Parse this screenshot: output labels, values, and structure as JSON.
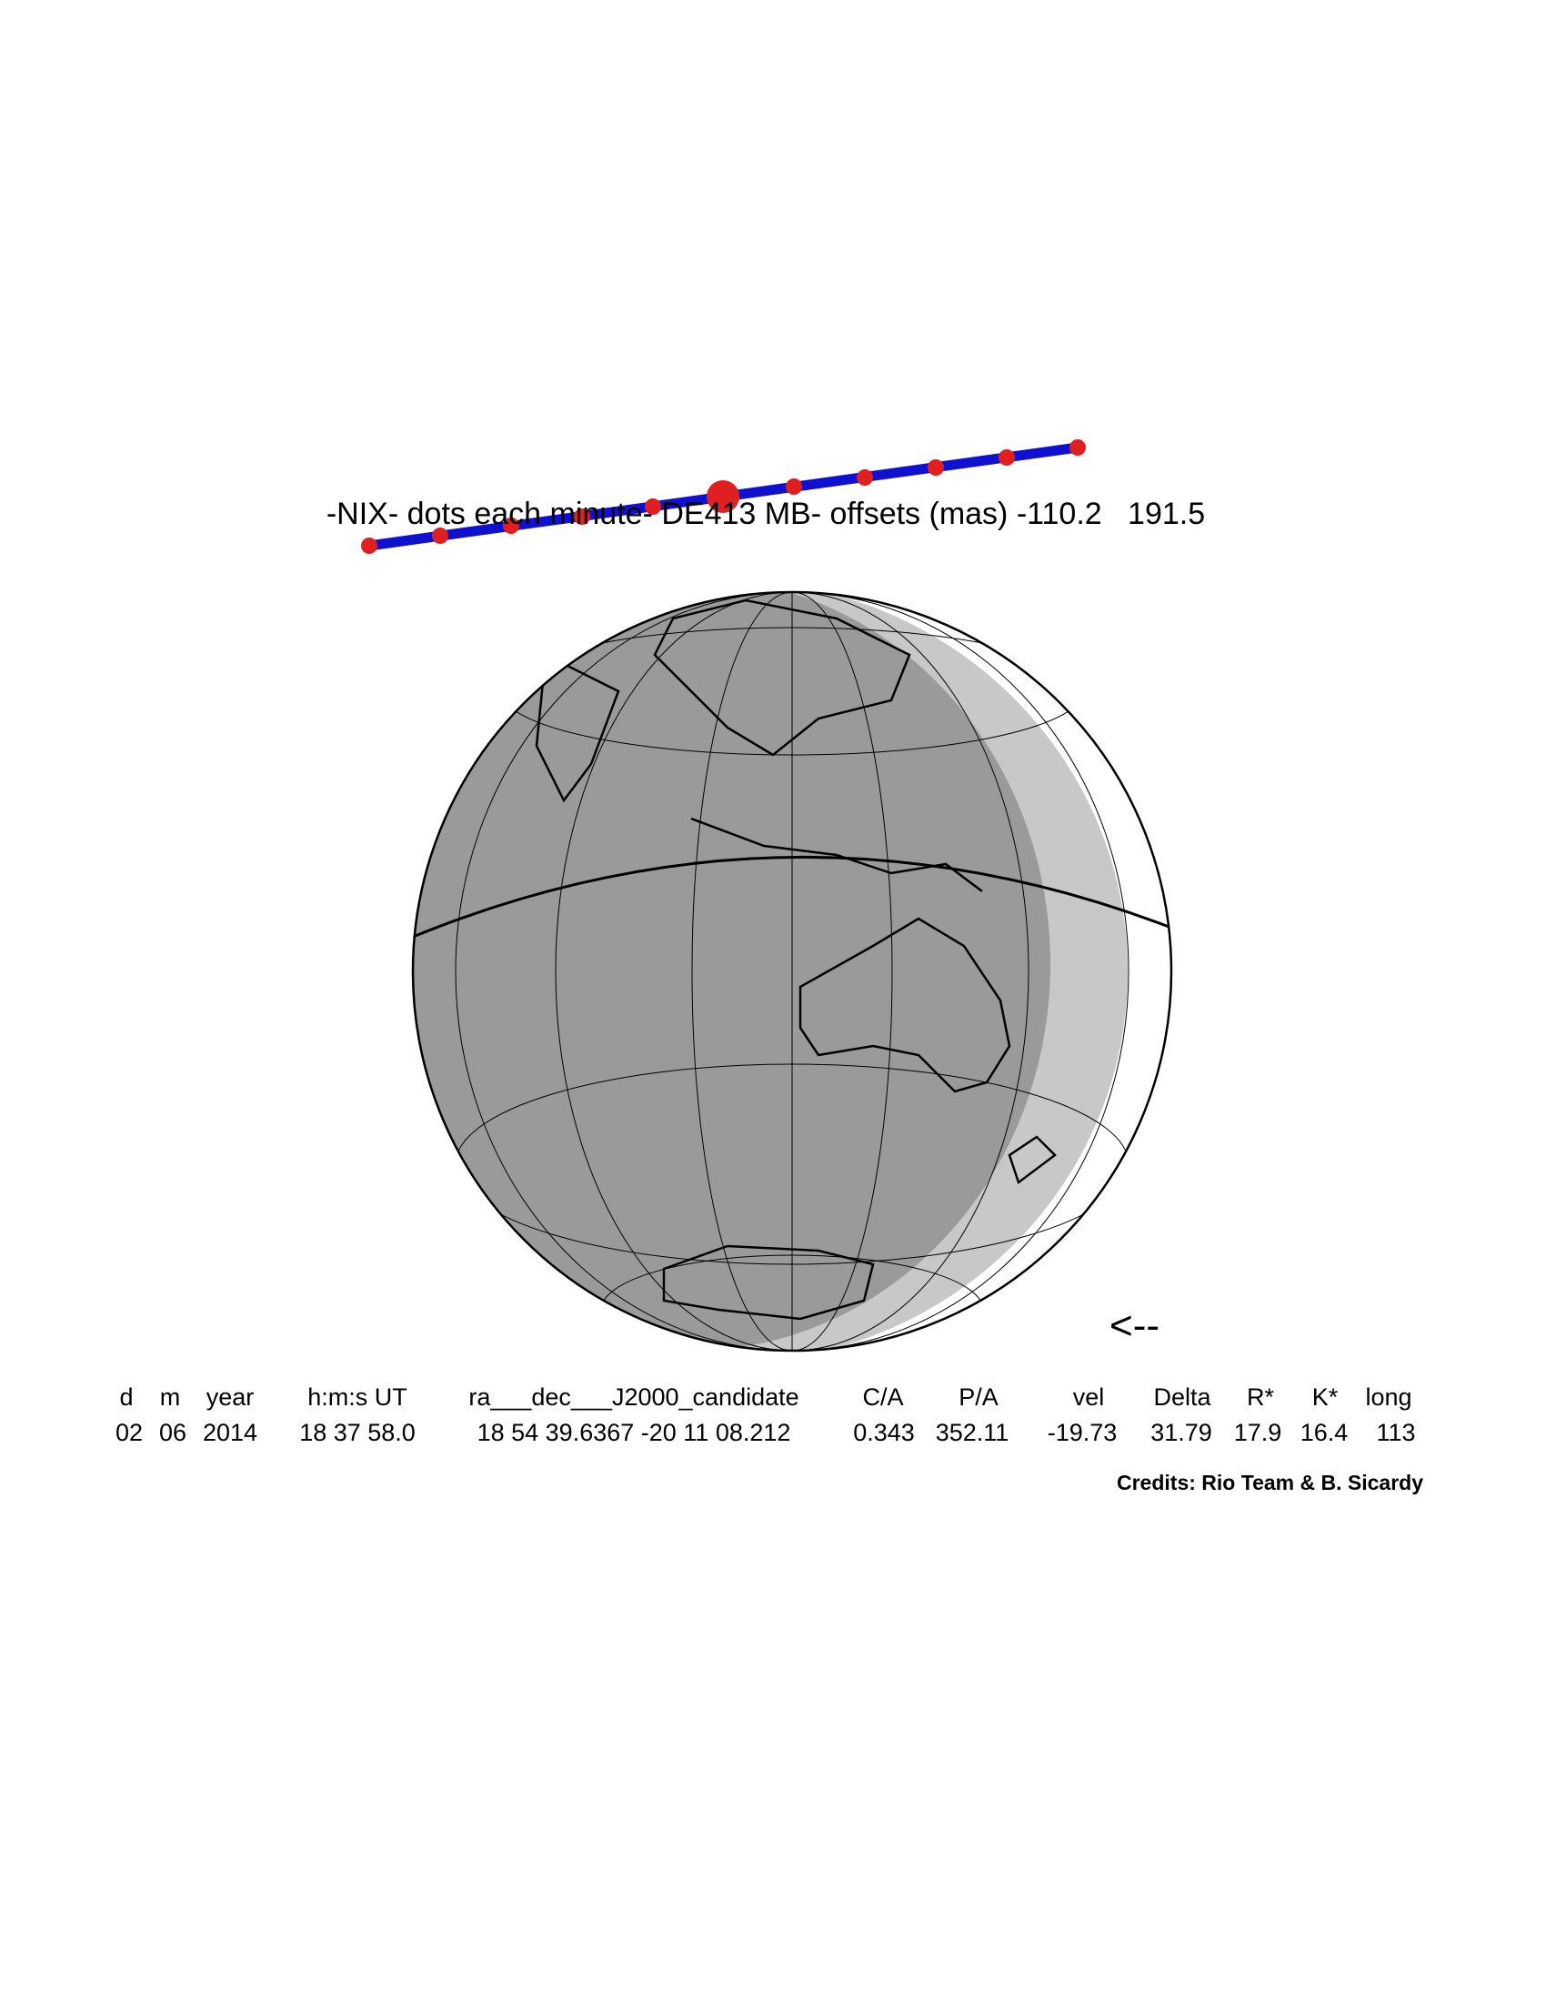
{
  "title": "-NIX- dots each minute- DE413 MB- offsets (mas) -110.2   191.5",
  "direction_arrow": "<--",
  "table": {
    "header": [
      "d",
      "m",
      "year",
      "h:m:s UT",
      "ra___dec___J2000_candidate",
      "C/A",
      "P/A",
      "vel",
      "Delta",
      "R*",
      "K*",
      "long"
    ],
    "row": [
      "02",
      "06",
      "2014",
      "18 37 58.0",
      "18 54 39.6367 -20 11 08.212",
      "0.343",
      "352.11",
      "-19.73",
      "31.79",
      "17.9",
      "16.4",
      "113"
    ]
  },
  "credits": "Credits: Rio Team & B. Sicardy"
}
